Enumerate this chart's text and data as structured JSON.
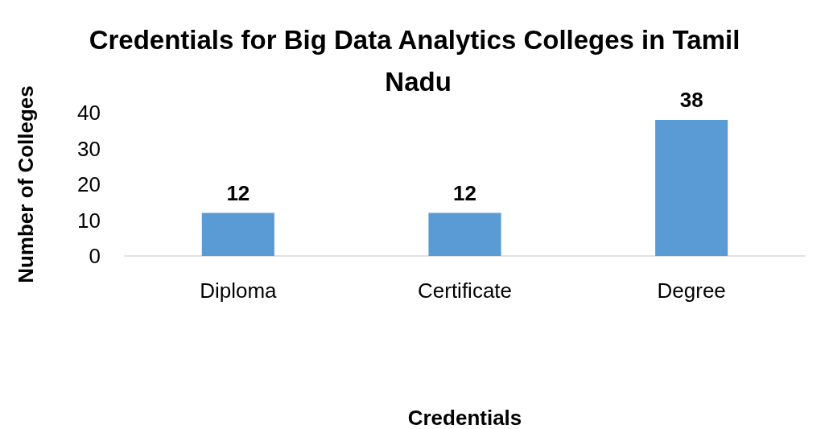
{
  "chart_data": {
    "type": "bar",
    "title": "Credentials for Big Data Analytics Colleges in Tamil Nadu",
    "xlabel": "Credentials",
    "ylabel": "Number of Colleges",
    "categories": [
      "Diploma",
      "Certificate",
      "Degree"
    ],
    "values": [
      12,
      12,
      38
    ],
    "color": "#5b9bd5",
    "ylim": [
      0,
      40
    ],
    "yticks": [
      0,
      10,
      20,
      30,
      40
    ],
    "grid": false,
    "data_labels": true
  }
}
